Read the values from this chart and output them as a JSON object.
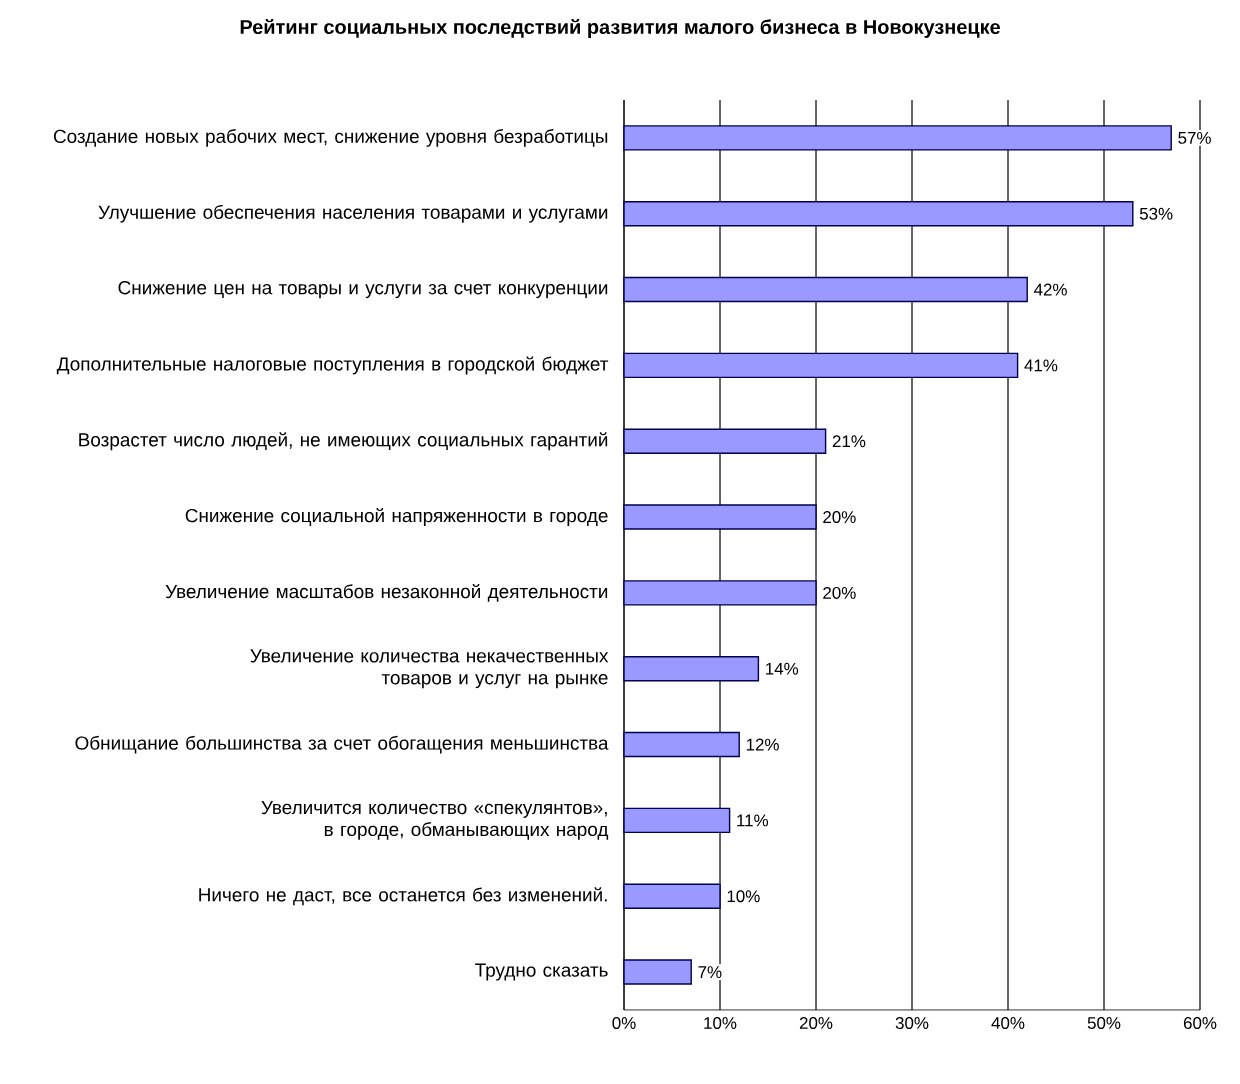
{
  "chart_data": {
    "type": "bar",
    "orientation": "horizontal",
    "title": "Рейтинг социальных последствий развития малого бизнеса в Новокузнецке",
    "categories": [
      "Создание новых рабочих мест, снижение уровня безработицы",
      "Улучшение обеспечения населения товарами и услугами",
      "Снижение цен на товары и услуги за счет конкуренции",
      "Дополнительные налоговые поступления в городской бюджет",
      "Возрастет число людей, не имеющих социальных гарантий",
      "Снижение социальной напряженности в городе",
      "Увеличение масштабов незаконной деятельности",
      "Увеличение количества некачественных товаров и услуг на рынке",
      "Обнищание большинства за счет обогащения меньшинства",
      "Увеличится количество «спекулянтов», в городе, обманывающих народ",
      "Ничего не даст, все останется без изменений.",
      "Трудно сказать"
    ],
    "values": [
      57,
      53,
      42,
      41,
      21,
      20,
      20,
      14,
      12,
      11,
      10,
      7
    ],
    "value_labels": [
      "57%",
      "53%",
      "42%",
      "41%",
      "21%",
      "20%",
      "20%",
      "14%",
      "12%",
      "11%",
      "10%",
      "7%"
    ],
    "color": "#9999ff",
    "xlim": [
      0,
      60
    ],
    "xticks": [
      {
        "value": 0,
        "label": "0%"
      },
      {
        "value": 10,
        "label": "10%"
      },
      {
        "value": 20,
        "label": "20%"
      },
      {
        "value": 30,
        "label": "30%"
      },
      {
        "value": 40,
        "label": "40%"
      },
      {
        "value": 50,
        "label": "50%"
      },
      {
        "value": 60,
        "label": "60%"
      }
    ],
    "grid": "x"
  }
}
